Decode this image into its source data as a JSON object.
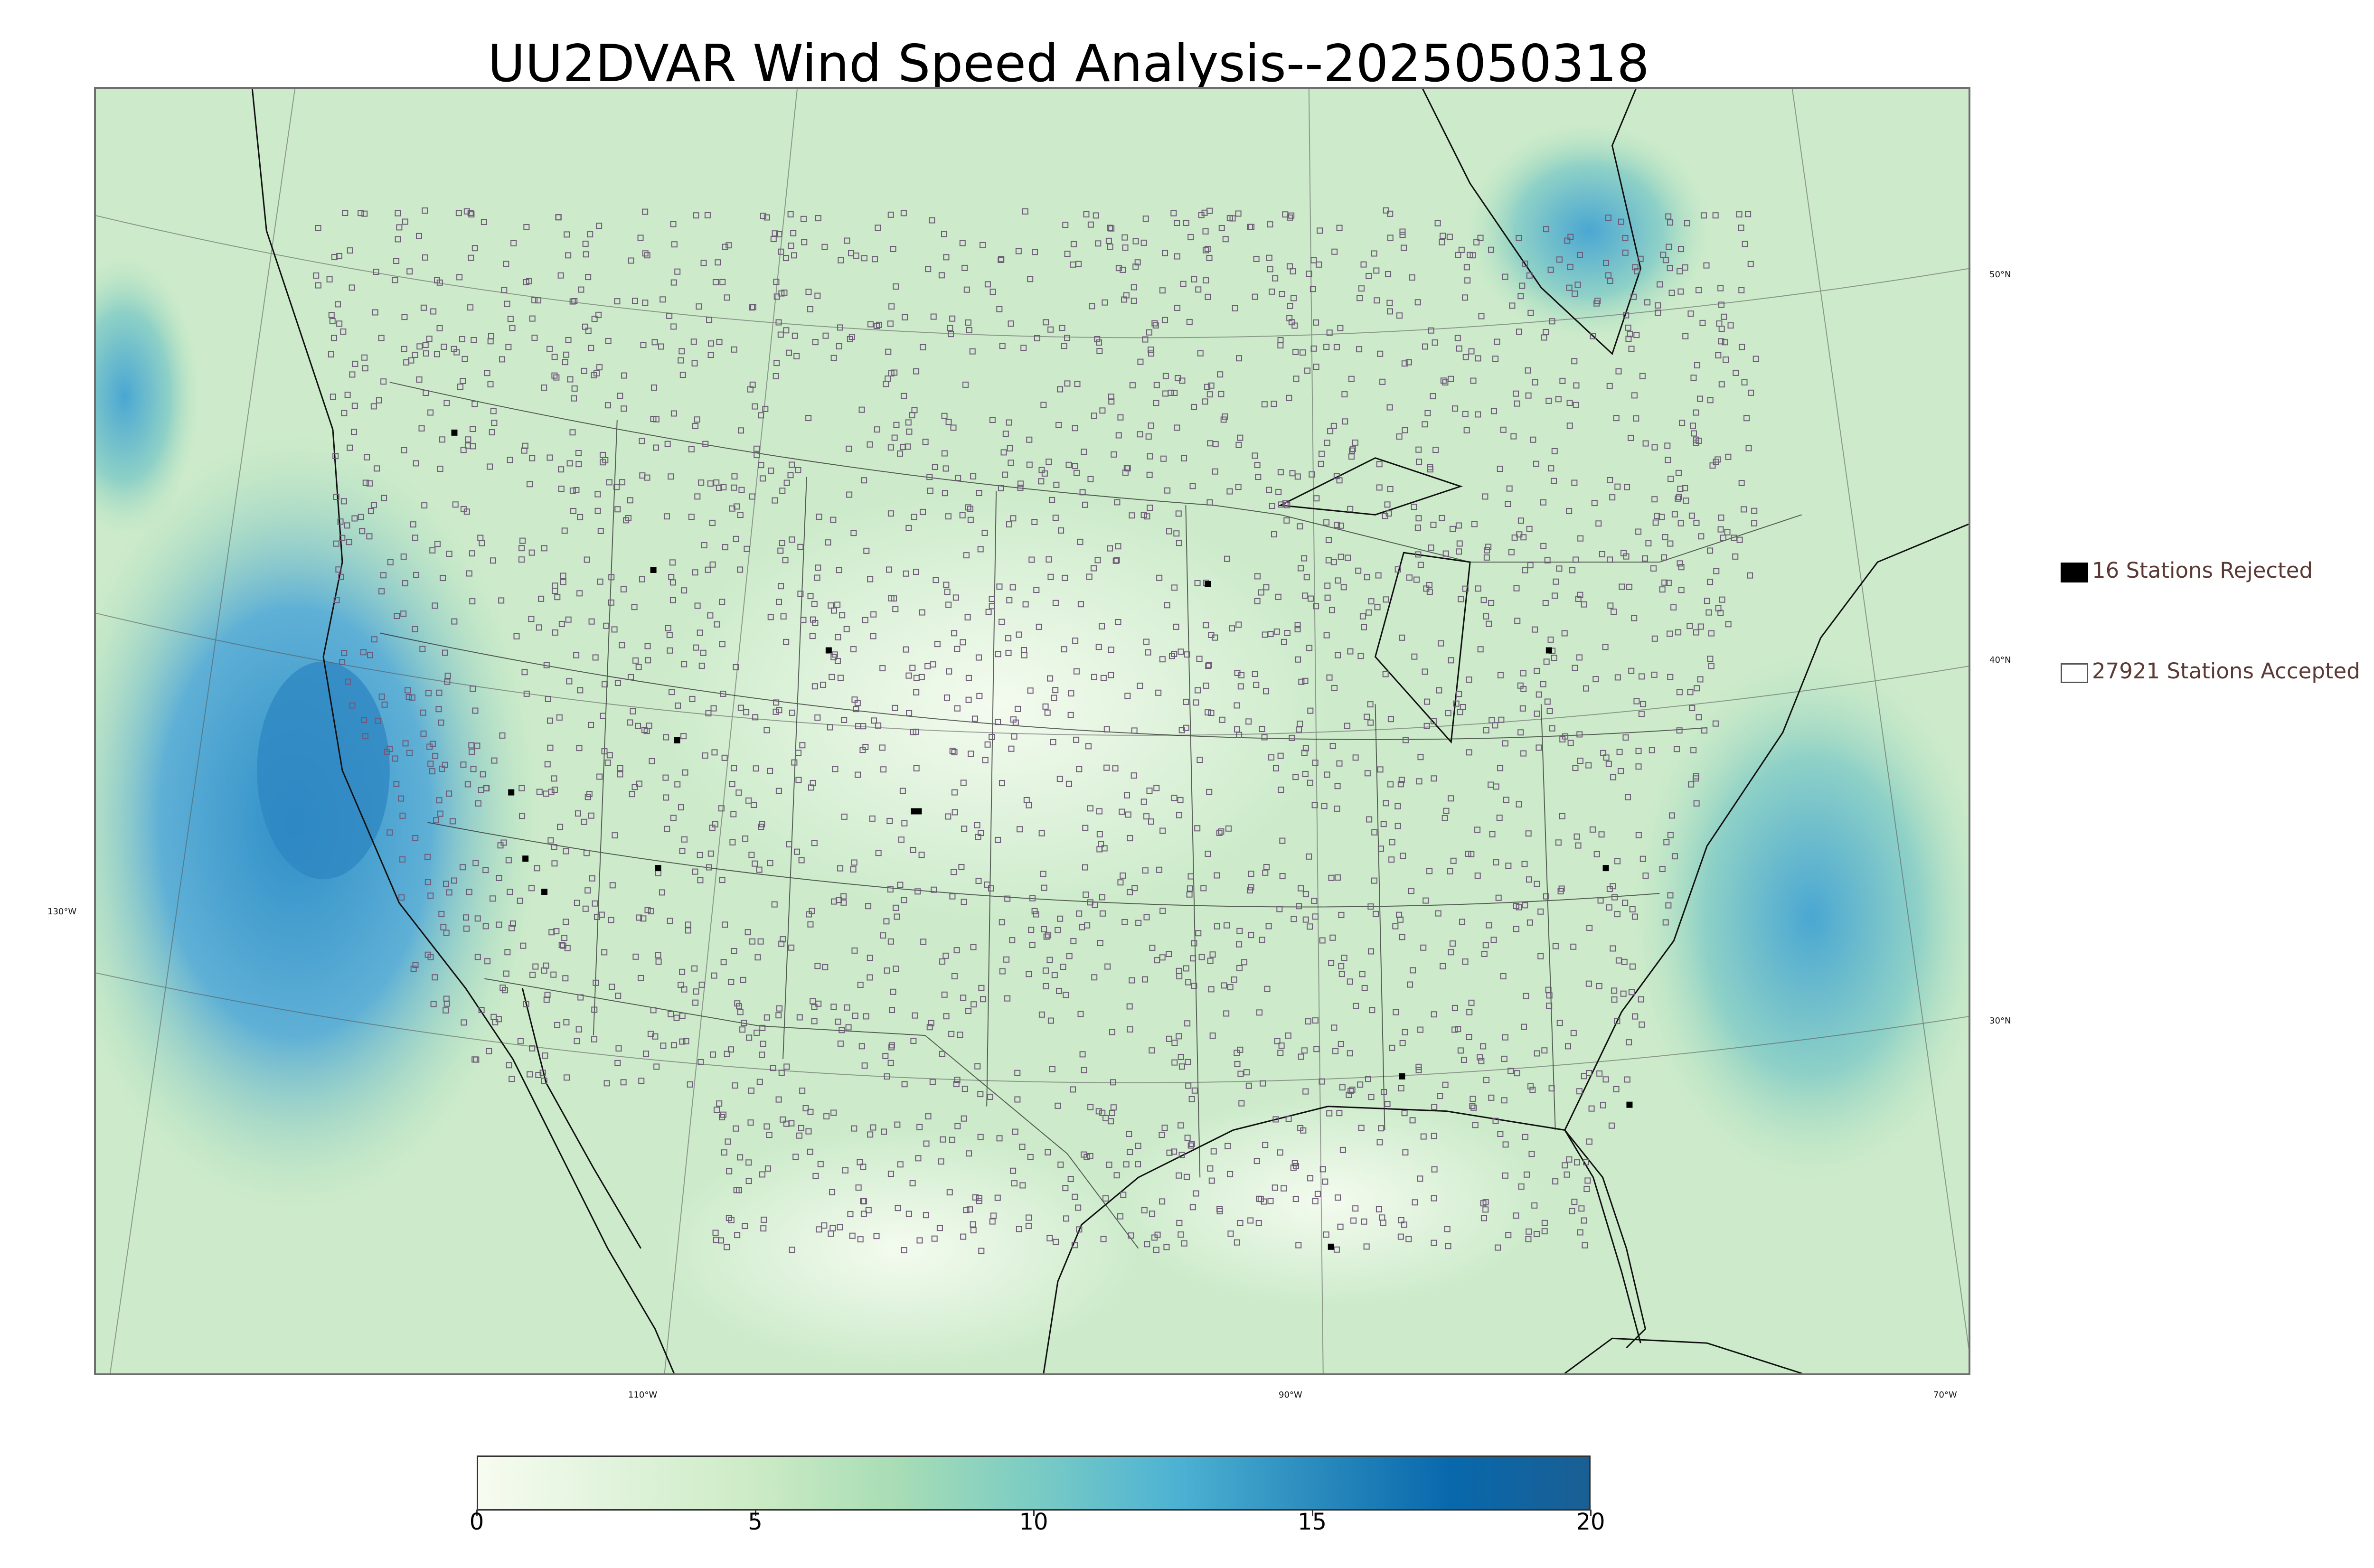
{
  "title": "UU2DVAR Wind Speed Analysis--2025050318",
  "map": {
    "longitude_labels": [
      "110°W",
      "90°W",
      "70°W",
      "130°W"
    ],
    "latitude_labels": [
      "50°N",
      "40°N",
      "30°N"
    ],
    "colors": {
      "land": "#d3ecd0",
      "ocean_high_wind": "#4a9fd0",
      "station_outline": "#6e5a78",
      "rejected": "#000000",
      "coastline": "#111111"
    }
  },
  "legend": {
    "rejected_label": "16 Stations Rejected",
    "accepted_label": "27921 Stations Accepted"
  },
  "colorbar": {
    "min": 0,
    "max": 20,
    "ticks": [
      "0",
      "5",
      "10",
      "15",
      "20"
    ],
    "colors": [
      "#f7fcf0",
      "#e0f3db",
      "#ccebc5",
      "#a8ddb5",
      "#7bccc4",
      "#4eb3d3",
      "#2b8cbe",
      "#0868ac",
      "#1a5f93"
    ]
  }
}
